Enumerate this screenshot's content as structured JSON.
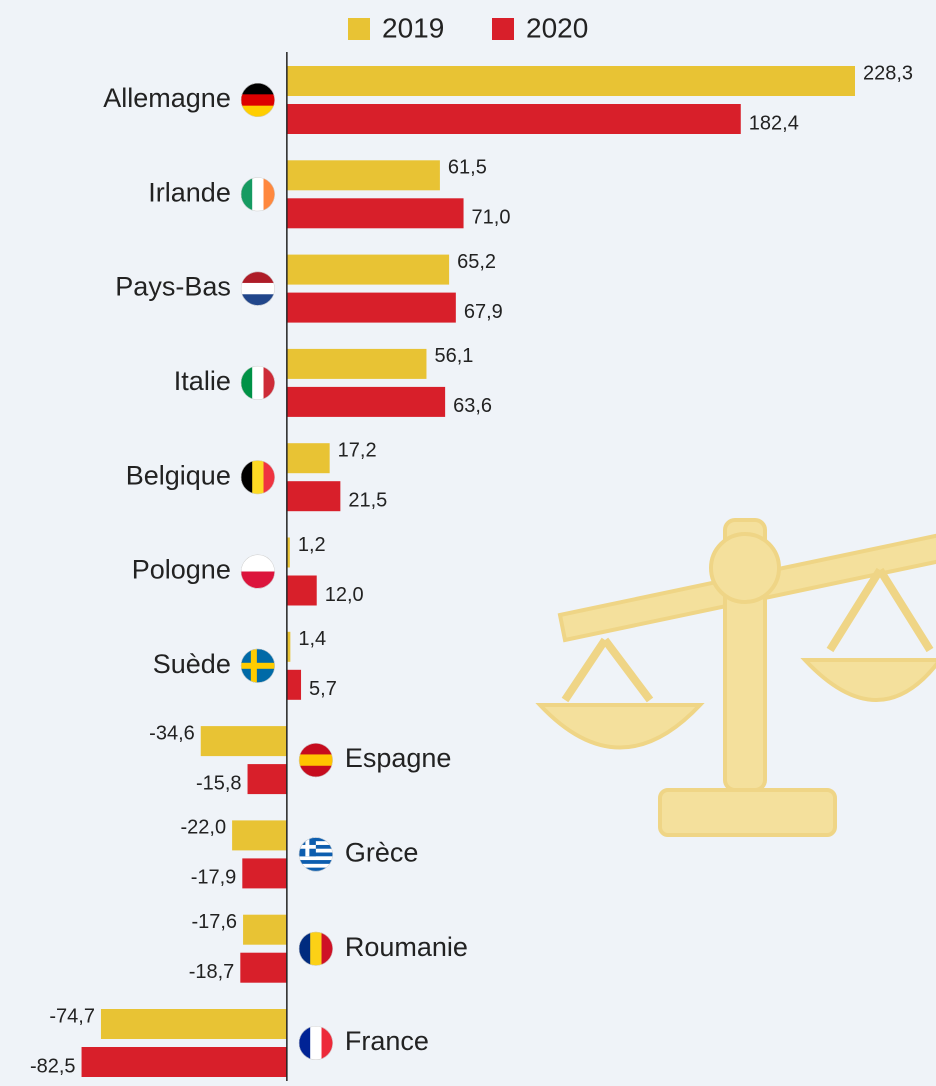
{
  "chart_data": {
    "type": "barh",
    "categories": [
      "Allemagne",
      "Irlande",
      "Pays-Bas",
      "Italie",
      "Belgique",
      "Pologne",
      "Suède",
      "Espagne",
      "Grèce",
      "Roumanie",
      "France"
    ],
    "series": [
      {
        "name": "2019",
        "color": "#e8c334",
        "values": [
          228.3,
          61.5,
          65.2,
          56.1,
          17.2,
          1.2,
          1.4,
          -34.6,
          -22.0,
          -17.6,
          -74.7
        ],
        "value_labels": [
          "228,3",
          "61,5",
          "65,2",
          "56,1",
          "17,2",
          "1,2",
          "1,4",
          "-34,6",
          "-22,0",
          "-17,6",
          "-74,7"
        ]
      },
      {
        "name": "2020",
        "color": "#d81f2a",
        "values": [
          182.4,
          71.0,
          67.9,
          63.6,
          21.5,
          12.0,
          5.7,
          -15.8,
          -17.9,
          -18.7,
          -82.5
        ],
        "value_labels": [
          "182,4",
          "71,0",
          "67,9",
          "63,6",
          "21,5",
          "12,0",
          "5,7",
          "-15,8",
          "-17,9",
          "-18,7",
          "-82,5"
        ]
      }
    ],
    "xlim": [
      -100,
      250
    ],
    "legend": "top"
  }
}
